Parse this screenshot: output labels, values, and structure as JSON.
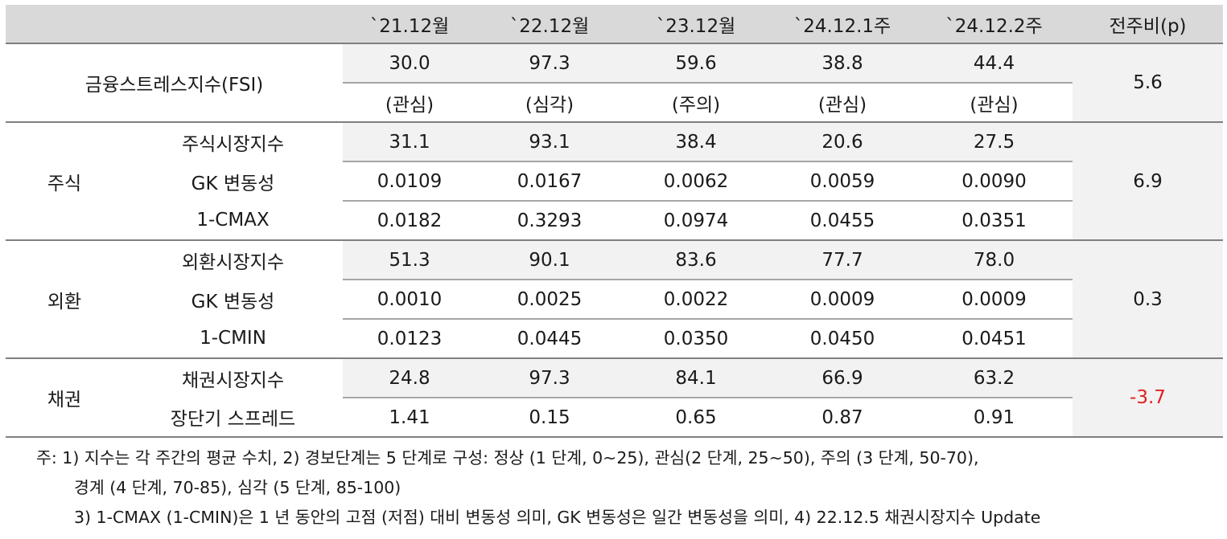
{
  "header": {
    "columns": [
      "`21.12월",
      "`22.12월",
      "`23.12월",
      "`24.12.1주",
      "`24.12.2주",
      "전주비(p)"
    ]
  },
  "fsi": {
    "label": "금융스트레스지수(FSI)",
    "values": [
      "30.0",
      "97.3",
      "59.6",
      "38.8",
      "44.4"
    ],
    "levels": [
      "(관심)",
      "(심각)",
      "(주의)",
      "(관심)",
      "(관심)"
    ],
    "diff": "5.6"
  },
  "groups": [
    {
      "category": "주식",
      "diff": "6.9",
      "rows": [
        {
          "label": "주식시장지수",
          "values": [
            "31.1",
            "93.1",
            "38.4",
            "20.6",
            "27.5"
          ]
        },
        {
          "label": "GK 변동성",
          "values": [
            "0.0109",
            "0.0167",
            "0.0062",
            "0.0059",
            "0.0090"
          ]
        },
        {
          "label": "1-CMAX",
          "values": [
            "0.0182",
            "0.3293",
            "0.0974",
            "0.0455",
            "0.0351"
          ]
        }
      ]
    },
    {
      "category": "외환",
      "diff": "0.3",
      "rows": [
        {
          "label": "외환시장지수",
          "values": [
            "51.3",
            "90.1",
            "83.6",
            "77.7",
            "78.0"
          ]
        },
        {
          "label": "GK 변동성",
          "values": [
            "0.0010",
            "0.0025",
            "0.0022",
            "0.0009",
            "0.0009"
          ]
        },
        {
          "label": "1-CMIN",
          "values": [
            "0.0123",
            "0.0445",
            "0.0350",
            "0.0450",
            "0.0451"
          ]
        }
      ]
    },
    {
      "category": "채권",
      "diff": "-3.7",
      "diff_color": "#e02020",
      "rows": [
        {
          "label": "채권시장지수",
          "values": [
            "24.8",
            "97.3",
            "84.1",
            "66.9",
            "63.2"
          ]
        },
        {
          "label": "장단기 스프레드",
          "values": [
            "1.41",
            "0.15",
            "0.65",
            "0.87",
            "0.91"
          ]
        }
      ]
    }
  ],
  "notes": [
    "주: 1) 지수는 각 주간의 평균 수치, 2) 경보단계는 5 단계로 구성: 정상 (1 단계, 0~25), 관심(2 단계, 25~50), 주의 (3 단계, 50-70),",
    "경계 (4 단계, 70-85), 심각 (5 단계, 85-100)",
    "3) 1-CMAX (1-CMIN)은 1 년 동안의 고점 (저점) 대비 변동성 의미, GK 변동성은 일간 변동성을 의미, 4) 22.12.5 채권시장지수 Update"
  ]
}
